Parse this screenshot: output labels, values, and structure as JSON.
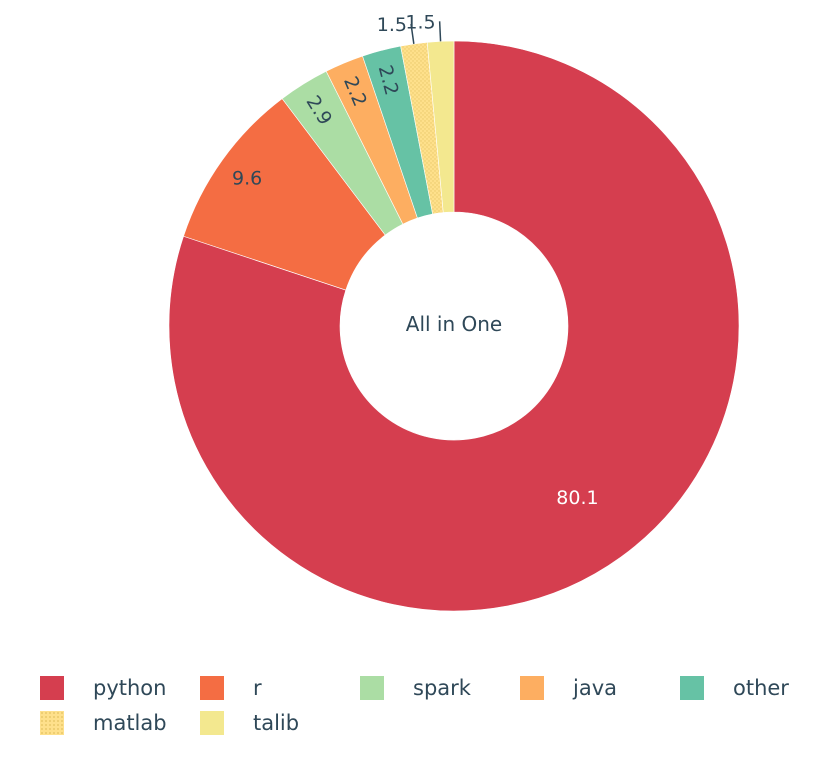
{
  "chart_data": {
    "type": "pie",
    "hole": true,
    "center_label": "All in One",
    "categories": [
      "python",
      "r",
      "spark",
      "java",
      "other",
      "matlab",
      "talib"
    ],
    "values": [
      80.1,
      9.6,
      2.9,
      2.2,
      2.2,
      1.5,
      1.5
    ],
    "value_labels": [
      "80.1",
      "9.6",
      "2.9",
      "2.2",
      "2.2",
      "1.5",
      "1.5"
    ],
    "colors": [
      "#d53e4f",
      "#f46d43",
      "#abdda4",
      "#fdae61",
      "#66c2a5",
      "#fee08b",
      "#f3e88f"
    ],
    "legend_placement": "bottom",
    "direction": "clockwise",
    "rotation_start": "top"
  }
}
